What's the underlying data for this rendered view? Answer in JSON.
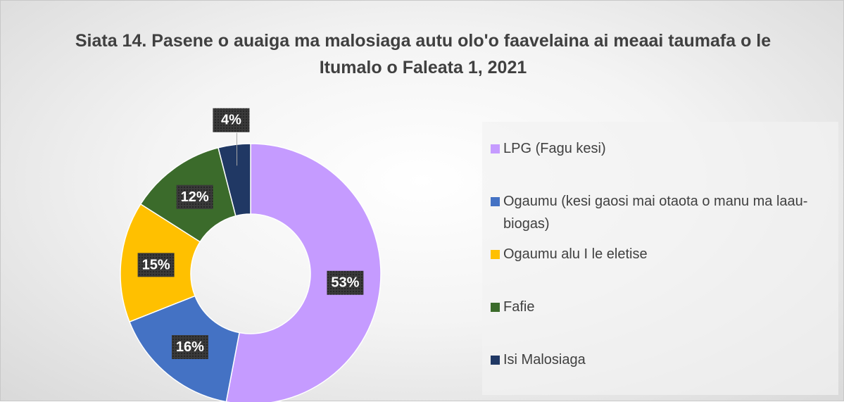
{
  "chart_data": {
    "type": "donut",
    "title": "Siata 14. Pasene o auaiga ma malosiaga autu olo'o faavelaina ai meaai taumafa o le Itumalo o Faleata 1, 2021",
    "categories": [
      "LPG (Fagu kesi)",
      "Ogaumu (kesi gaosi mai otaota o manu ma laau- biogas)",
      "Ogaumu alu I le eletise",
      "Fafie",
      "Isi Malosiaga"
    ],
    "values": [
      53,
      16,
      15,
      12,
      4
    ],
    "value_labels": [
      "53%",
      "16%",
      "15%",
      "12%",
      "4%"
    ],
    "colors": [
      "#c59bff",
      "#4472c4",
      "#ffc000",
      "#3b6b2b",
      "#203864"
    ],
    "legend": "right"
  }
}
